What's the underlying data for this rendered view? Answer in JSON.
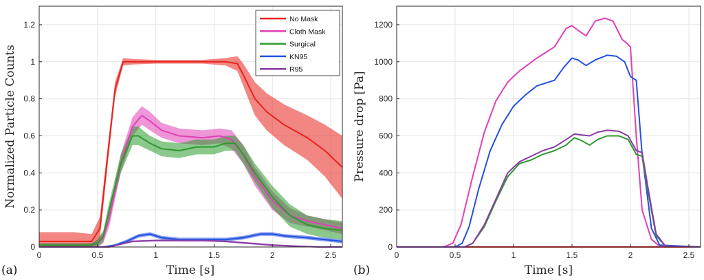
{
  "figure": {
    "panel_labels": [
      "(a)",
      "(b)"
    ]
  },
  "chart_data": [
    {
      "type": "line",
      "panel": "(a)",
      "title": "",
      "xlabel": "Time [s]",
      "ylabel": "Normalized Particle Counts",
      "xlim": [
        0,
        2.6
      ],
      "ylim": [
        0,
        1.3
      ],
      "xticks": [
        "0",
        "0.5",
        "1",
        "1.5",
        "2",
        "2.5"
      ],
      "yticks": [
        "0",
        "0.2",
        "0.4",
        "0.6",
        "0.8",
        "1",
        "1.2"
      ],
      "grid": true,
      "legend_position": "top-right",
      "series": [
        {
          "name": "No Mask",
          "color": "#e8221c",
          "x": [
            0,
            0.3,
            0.45,
            0.52,
            0.58,
            0.65,
            0.72,
            0.8,
            1.0,
            1.2,
            1.4,
            1.6,
            1.7,
            1.75,
            1.85,
            1.95,
            2.1,
            2.3,
            2.45,
            2.6
          ],
          "y": [
            0.03,
            0.03,
            0.03,
            0.1,
            0.45,
            0.85,
            1.0,
            1.0,
            1.0,
            1.0,
            1.0,
            1.0,
            0.99,
            0.93,
            0.8,
            0.73,
            0.66,
            0.59,
            0.52,
            0.43
          ],
          "band": [
            0.05,
            0.05,
            0.04,
            0.06,
            0.05,
            0.04,
            0.02,
            0.015,
            0.01,
            0.01,
            0.01,
            0.02,
            0.04,
            0.06,
            0.09,
            0.1,
            0.11,
            0.12,
            0.14,
            0.17
          ]
        },
        {
          "name": "Cloth Mask",
          "color": "#e040b8",
          "x": [
            0,
            0.45,
            0.5,
            0.55,
            0.6,
            0.7,
            0.8,
            0.88,
            0.95,
            1.05,
            1.2,
            1.4,
            1.55,
            1.65,
            1.75,
            1.85,
            2.0,
            2.15,
            2.3,
            2.45,
            2.6
          ],
          "y": [
            0.01,
            0.01,
            0.02,
            0.05,
            0.15,
            0.45,
            0.65,
            0.71,
            0.68,
            0.63,
            0.6,
            0.59,
            0.6,
            0.58,
            0.5,
            0.38,
            0.25,
            0.17,
            0.14,
            0.12,
            0.1
          ],
          "band": [
            0.01,
            0.01,
            0.02,
            0.03,
            0.04,
            0.05,
            0.05,
            0.05,
            0.05,
            0.04,
            0.04,
            0.04,
            0.04,
            0.05,
            0.05,
            0.05,
            0.05,
            0.04,
            0.03,
            0.03,
            0.03
          ]
        },
        {
          "name": "Surgical",
          "color": "#2c9a2c",
          "x": [
            0,
            0.45,
            0.5,
            0.55,
            0.6,
            0.7,
            0.8,
            0.85,
            0.95,
            1.05,
            1.2,
            1.35,
            1.5,
            1.6,
            1.68,
            1.75,
            1.85,
            2.0,
            2.15,
            2.3,
            2.45,
            2.6
          ],
          "y": [
            0.01,
            0.01,
            0.02,
            0.06,
            0.2,
            0.45,
            0.6,
            0.6,
            0.56,
            0.53,
            0.52,
            0.54,
            0.54,
            0.56,
            0.56,
            0.5,
            0.4,
            0.27,
            0.17,
            0.12,
            0.1,
            0.09
          ],
          "band": [
            0.01,
            0.01,
            0.02,
            0.03,
            0.04,
            0.05,
            0.05,
            0.05,
            0.04,
            0.04,
            0.04,
            0.04,
            0.04,
            0.04,
            0.04,
            0.05,
            0.05,
            0.06,
            0.06,
            0.05,
            0.05,
            0.05
          ]
        },
        {
          "name": "KN95",
          "color": "#2350e0",
          "x": [
            0,
            0.55,
            0.65,
            0.75,
            0.85,
            0.95,
            1.05,
            1.2,
            1.4,
            1.6,
            1.75,
            1.9,
            2.0,
            2.1,
            2.3,
            2.45,
            2.6
          ],
          "y": [
            0.0,
            0.0,
            0.01,
            0.03,
            0.06,
            0.07,
            0.05,
            0.04,
            0.04,
            0.04,
            0.05,
            0.07,
            0.07,
            0.06,
            0.05,
            0.04,
            0.03
          ],
          "band": [
            0.003,
            0.003,
            0.005,
            0.01,
            0.01,
            0.01,
            0.01,
            0.01,
            0.01,
            0.01,
            0.01,
            0.01,
            0.01,
            0.01,
            0.01,
            0.01,
            0.01
          ]
        },
        {
          "name": "R95",
          "color": "#8a3aa8",
          "x": [
            0,
            0.6,
            0.8,
            1.0,
            1.2,
            1.4,
            1.6,
            1.8,
            2.0,
            2.2,
            2.4,
            2.6
          ],
          "y": [
            0.0,
            0.0,
            0.03,
            0.035,
            0.035,
            0.035,
            0.03,
            0.02,
            0.01,
            0.005,
            0.0,
            0.0
          ],
          "band": [
            0.003,
            0.003,
            0.005,
            0.005,
            0.005,
            0.005,
            0.005,
            0.005,
            0.005,
            0.003,
            0.003,
            0.003
          ]
        }
      ]
    },
    {
      "type": "line",
      "panel": "(b)",
      "title": "",
      "xlabel": "Time [s]",
      "ylabel": "Pressure drop [Pa]",
      "xlim": [
        0,
        2.6
      ],
      "ylim": [
        0,
        1300
      ],
      "xticks": [
        "0",
        "0.5",
        "1",
        "1.5",
        "2",
        "2.5"
      ],
      "yticks": [
        "0",
        "200",
        "400",
        "600",
        "800",
        "1000",
        "1200"
      ],
      "grid": true,
      "series": [
        {
          "name": "No Mask",
          "color": "#e8221c",
          "x": [
            0,
            2.6
          ],
          "y": [
            0,
            0
          ]
        },
        {
          "name": "Cloth Mask",
          "color": "#e040b8",
          "x": [
            0,
            0.4,
            0.48,
            0.55,
            0.65,
            0.75,
            0.85,
            0.95,
            1.05,
            1.2,
            1.35,
            1.45,
            1.5,
            1.55,
            1.62,
            1.7,
            1.78,
            1.85,
            1.93,
            1.97,
            2.0,
            2.05,
            2.1,
            2.18,
            2.25,
            2.6
          ],
          "y": [
            0,
            0,
            20,
            120,
            380,
            620,
            790,
            890,
            950,
            1020,
            1080,
            1180,
            1195,
            1170,
            1140,
            1220,
            1235,
            1220,
            1120,
            1100,
            1080,
            600,
            200,
            40,
            5,
            0
          ]
        },
        {
          "name": "KN95",
          "color": "#2350e0",
          "x": [
            0,
            0.5,
            0.56,
            0.62,
            0.7,
            0.8,
            0.9,
            1.0,
            1.1,
            1.2,
            1.35,
            1.43,
            1.5,
            1.55,
            1.62,
            1.7,
            1.8,
            1.88,
            1.95,
            2.0,
            2.05,
            2.1,
            2.18,
            2.25,
            2.6
          ],
          "y": [
            0,
            0,
            20,
            110,
            310,
            520,
            660,
            760,
            820,
            870,
            900,
            970,
            1020,
            1010,
            980,
            1010,
            1035,
            1030,
            1000,
            920,
            900,
            500,
            100,
            10,
            0
          ]
        },
        {
          "name": "Surgical",
          "color": "#2c9a2c",
          "x": [
            0,
            0.58,
            0.65,
            0.75,
            0.85,
            0.95,
            1.05,
            1.15,
            1.25,
            1.35,
            1.45,
            1.52,
            1.58,
            1.65,
            1.72,
            1.8,
            1.9,
            1.98,
            2.05,
            2.1,
            2.15,
            2.22,
            2.3,
            2.6
          ],
          "y": [
            0,
            0,
            20,
            110,
            250,
            380,
            450,
            470,
            500,
            520,
            550,
            590,
            575,
            550,
            580,
            600,
            600,
            580,
            500,
            490,
            300,
            60,
            5,
            0
          ]
        },
        {
          "name": "R95",
          "color": "#8a3aa8",
          "x": [
            0,
            0.58,
            0.65,
            0.75,
            0.85,
            0.95,
            1.05,
            1.15,
            1.25,
            1.35,
            1.45,
            1.52,
            1.58,
            1.65,
            1.72,
            1.8,
            1.9,
            1.98,
            2.05,
            2.1,
            2.15,
            2.22,
            2.3,
            2.6
          ],
          "y": [
            0,
            0,
            20,
            120,
            260,
            400,
            460,
            490,
            520,
            540,
            580,
            610,
            605,
            600,
            620,
            630,
            625,
            600,
            520,
            510,
            320,
            70,
            5,
            0
          ]
        }
      ]
    }
  ]
}
